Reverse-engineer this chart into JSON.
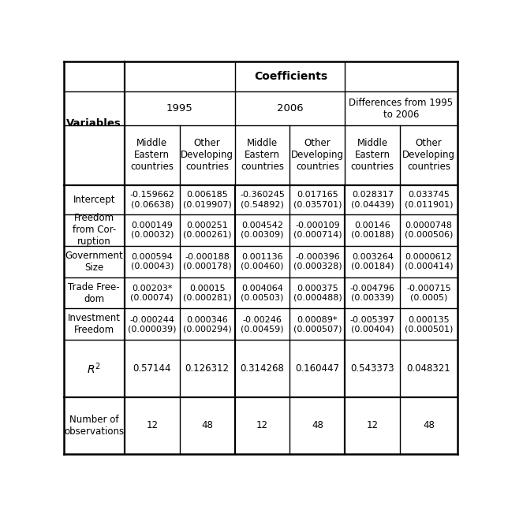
{
  "col_bounds": [
    0.0,
    0.155,
    0.295,
    0.435,
    0.575,
    0.715,
    0.855,
    1.0
  ],
  "row_bounds": [
    1.0,
    0.922,
    0.837,
    0.685,
    0.61,
    0.53,
    0.45,
    0.37,
    0.29,
    0.145,
    0.0
  ],
  "header_level3": [
    "Middle\nEastern\ncountries",
    "Other\nDeveloping\ncountries",
    "Middle\nEastern\ncountries",
    "Other\nDeveloping\ncountries",
    "Middle\nEastern\ncountries",
    "Other\nDeveloping\ncountries"
  ],
  "row_labels": [
    "Intercept",
    "Freedom\nfrom Cor-\nruption",
    "Government\nSize",
    "Trade Free-\ndom",
    "Investment\nFreedom"
  ],
  "data": [
    [
      "-0.159662\n(0.06638)",
      "0.006185\n(0.019907)",
      "-0.360245\n(0.54892)",
      "0.017165\n(0.035701)",
      "0.028317\n(0.04439)",
      "0.033745\n(0.011901)"
    ],
    [
      "0.000149\n(0.00032)",
      "0.000251\n(0.000261)",
      "0.004542\n(0.00309)",
      "-0.000109\n(0.000714)",
      "0.00146\n(0.00188)",
      "0.0000748\n(0.000506)"
    ],
    [
      "0.000594\n(0.00043)",
      "-0.000188\n(0.000178)",
      "0.001136\n(0.00460)",
      "-0.000396\n(0.000328)",
      "0.003264\n(0.00184)",
      "0.0000612\n(0.000414)"
    ],
    [
      "0.00203*\n(0.00074)",
      "0.00015\n(0.000281)",
      "0.004064\n(0.00503)",
      "0.000375\n(0.000488)",
      "-0.004796\n(0.00339)",
      "-0.000715\n(0.0005)"
    ],
    [
      "-0.000244\n(0.000039)",
      "0.000346\n(0.000294)",
      "-0.00246\n(0.00459)",
      "0.00089*\n(0.000507)",
      "-0.005397\n(0.00404)",
      "0.000135\n(0.000501)"
    ]
  ],
  "r2_values": [
    "0.57144",
    "0.126312",
    "0.314268",
    "0.160447",
    "0.543373",
    "0.048321"
  ],
  "nobs_values": [
    "12",
    "48",
    "12",
    "48",
    "12",
    "48"
  ],
  "bg_color": "#ffffff",
  "text_color": "#000000",
  "line_color": "#000000"
}
